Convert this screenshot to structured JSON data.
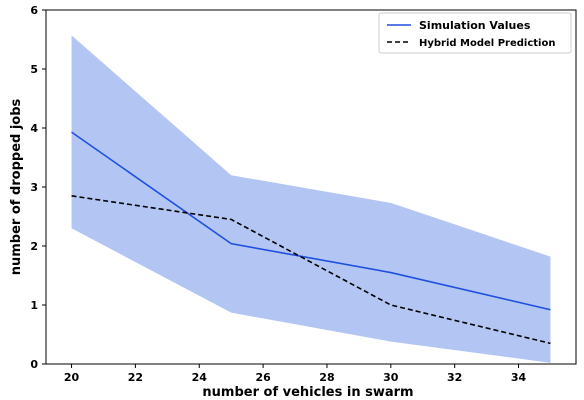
{
  "chart_data": {
    "type": "line",
    "title": "",
    "xlabel": "number of vehicles in swarm",
    "ylabel": "number of dropped jobs",
    "xlim": [
      19.2,
      35.8
    ],
    "ylim": [
      0,
      6
    ],
    "xticks": [
      20,
      22,
      24,
      26,
      28,
      30,
      32,
      34
    ],
    "yticks": [
      0,
      1,
      2,
      3,
      4,
      5,
      6
    ],
    "x": [
      20,
      25,
      30,
      35
    ],
    "series": [
      {
        "name": "Simulation Values",
        "values": [
          3.93,
          2.04,
          1.55,
          0.92
        ],
        "color": "#1f4fe0",
        "style": "solid"
      },
      {
        "name": "Hybrid Model Prediction",
        "values": [
          2.85,
          2.45,
          1.0,
          0.35
        ],
        "color": "#000000",
        "style": "dashed"
      }
    ],
    "band": {
      "series": "Simulation Values",
      "lower": [
        2.3,
        0.87,
        0.38,
        0.02
      ],
      "upper": [
        5.57,
        3.2,
        2.73,
        1.82
      ],
      "color": "#b3c6f3"
    },
    "grid": false,
    "legend_position": "top-right"
  }
}
